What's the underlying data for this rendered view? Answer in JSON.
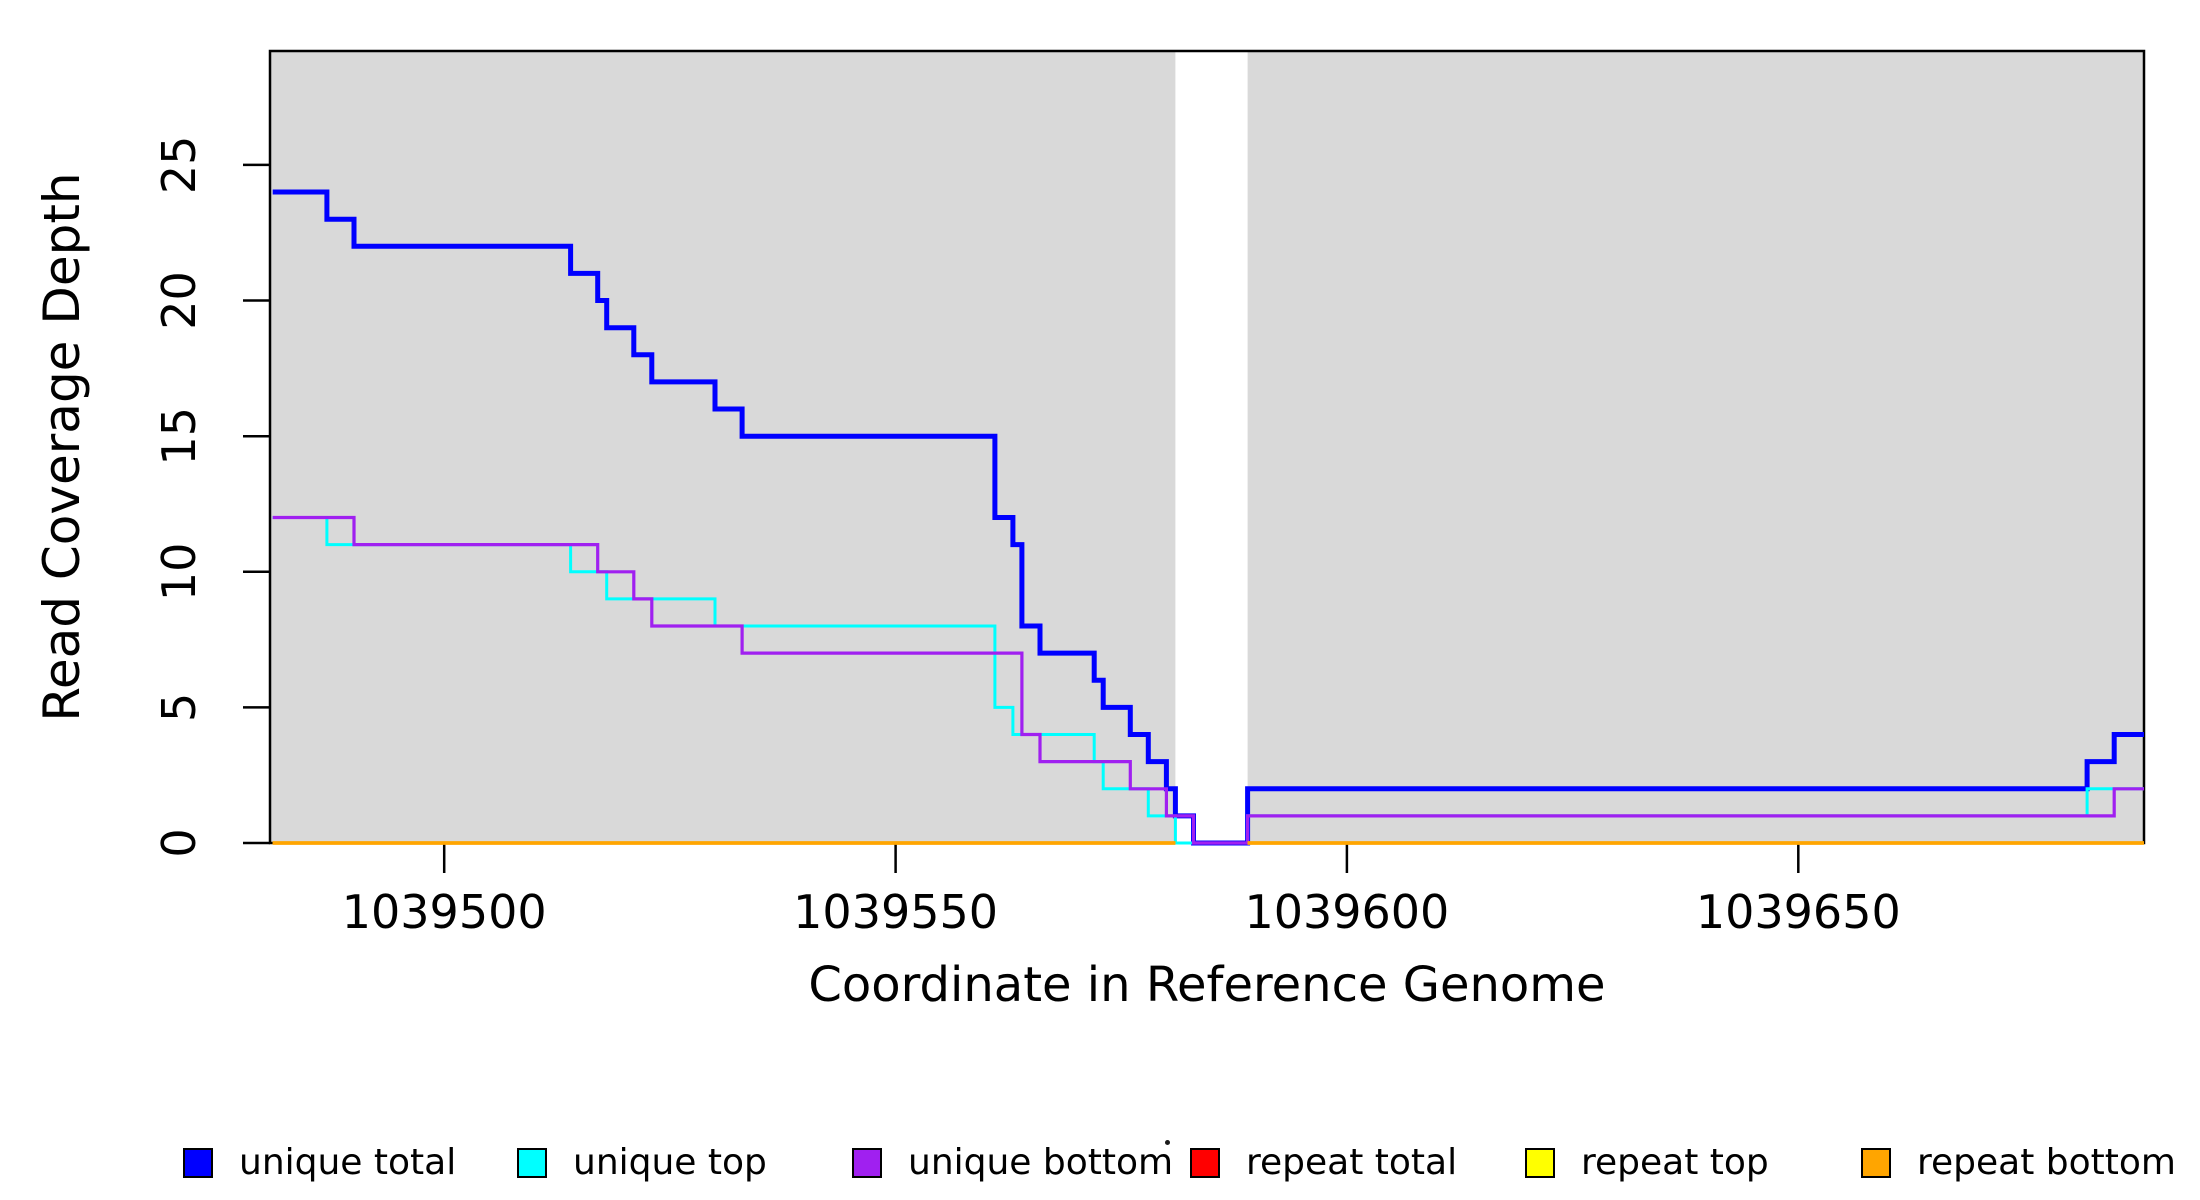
{
  "figure": {
    "y_label": "Read Coverage Depth",
    "x_label": "Coordinate in Reference Genome"
  },
  "legend": {
    "entries": [
      {
        "label": "unique total",
        "color": "#0000FF"
      },
      {
        "label": "unique top",
        "color": "#00FFFF"
      },
      {
        "label": "unique bottom",
        "color": "#A020F0"
      },
      {
        "label": "repeat total",
        "color": "#FF0000"
      },
      {
        "label": "repeat top",
        "color": "#FFFF00"
      },
      {
        "label": "repeat bottom",
        "color": "#FFA500"
      }
    ]
  },
  "colors": {
    "panel_background": "#D9D9D9",
    "gap_background": "#FFFFFF",
    "frame": "#000000",
    "unique_total": "#0000FF",
    "unique_top": "#00FFFF",
    "unique_bottom": "#A020F0",
    "repeat_total": "#FF0000",
    "repeat_top": "#FFFF00",
    "repeat_bottom": "#FFA500"
  },
  "chart_data": {
    "type": "line",
    "style": "step",
    "title": "",
    "xlabel": "Coordinate in Reference Genome",
    "ylabel": "Read Coverage Depth",
    "x_range": [
      1039480.7,
      1039688.3
    ],
    "y_range": [
      0,
      29.2
    ],
    "grid": false,
    "legend_position": "bottom",
    "x_ticks": [
      {
        "value": 1039500,
        "label": "1039500"
      },
      {
        "value": 1039550,
        "label": "1039550"
      },
      {
        "value": 1039600,
        "label": "1039600"
      },
      {
        "value": 1039650,
        "label": "1039650"
      }
    ],
    "y_ticks": [
      {
        "value": 0,
        "label": "0"
      },
      {
        "value": 5,
        "label": "5"
      },
      {
        "value": 10,
        "label": "10"
      },
      {
        "value": 15,
        "label": "15"
      },
      {
        "value": 20,
        "label": "20"
      },
      {
        "value": 25,
        "label": "25"
      }
    ],
    "background_bands": [
      {
        "x_start": 1039480.7,
        "x_end": 1039581.0,
        "color": "#D9D9D9"
      },
      {
        "x_start": 1039589.0,
        "x_end": 1039688.3,
        "color": "#D9D9D9"
      }
    ],
    "gap_region": {
      "x_start": 1039581.0,
      "x_end": 1039589.0,
      "note": "white band, no repeat-line data"
    },
    "series": [
      {
        "name": "unique total",
        "color": "#0000FF",
        "line_width": 5,
        "segments": [
          {
            "points": [
              [
                1039481,
                24
              ],
              [
                1039487,
                23
              ],
              [
                1039490,
                22
              ],
              [
                1039514,
                21
              ],
              [
                1039517,
                20
              ],
              [
                1039518,
                19
              ],
              [
                1039521,
                18
              ],
              [
                1039523,
                17
              ],
              [
                1039530,
                16
              ],
              [
                1039533,
                15
              ],
              [
                1039561,
                12
              ],
              [
                1039563,
                11
              ],
              [
                1039564,
                8
              ],
              [
                1039566,
                7
              ],
              [
                1039572,
                6
              ],
              [
                1039573,
                5
              ],
              [
                1039576,
                4
              ],
              [
                1039578,
                3
              ],
              [
                1039580,
                2
              ],
              [
                1039581,
                1
              ],
              [
                1039583,
                0
              ],
              [
                1039589,
                2
              ],
              [
                1039682,
                3
              ],
              [
                1039685,
                4
              ]
            ],
            "end_x": 1039688.3
          }
        ]
      },
      {
        "name": "unique top",
        "color": "#00FFFF",
        "line_width": 3,
        "segments": [
          {
            "points": [
              [
                1039481,
                12
              ],
              [
                1039487,
                11
              ],
              [
                1039514,
                10
              ],
              [
                1039518,
                9
              ],
              [
                1039530,
                8
              ],
              [
                1039561,
                5
              ],
              [
                1039563,
                4
              ],
              [
                1039572,
                3
              ],
              [
                1039573,
                2
              ],
              [
                1039578,
                1
              ],
              [
                1039581,
                0
              ],
              [
                1039589,
                1
              ],
              [
                1039682,
                2
              ]
            ],
            "end_x": 1039688.3
          }
        ]
      },
      {
        "name": "unique bottom",
        "color": "#A020F0",
        "line_width": 3.2,
        "segments": [
          {
            "points": [
              [
                1039481,
                12
              ],
              [
                1039490,
                11
              ],
              [
                1039517,
                10
              ],
              [
                1039521,
                9
              ],
              [
                1039523,
                8
              ],
              [
                1039533,
                7
              ],
              [
                1039564,
                4
              ],
              [
                1039566,
                3
              ],
              [
                1039576,
                2
              ],
              [
                1039580,
                1
              ],
              [
                1039583,
                0
              ],
              [
                1039589,
                1
              ],
              [
                1039685,
                2
              ]
            ],
            "end_x": 1039688.3
          }
        ]
      },
      {
        "name": "repeat total",
        "color": "#FF0000",
        "line_width": 3,
        "segments": [
          {
            "points": [
              [
                1039481,
                0
              ]
            ],
            "end_x": 1039581
          },
          {
            "points": [
              [
                1039589,
                0
              ]
            ],
            "end_x": 1039688.3
          }
        ]
      },
      {
        "name": "repeat top",
        "color": "#FFFF00",
        "line_width": 3,
        "segments": [
          {
            "points": [
              [
                1039481,
                0
              ]
            ],
            "end_x": 1039581
          },
          {
            "points": [
              [
                1039589,
                0
              ]
            ],
            "end_x": 1039688.3
          }
        ]
      },
      {
        "name": "repeat bottom",
        "color": "#FFA500",
        "line_width": 3.8,
        "segments": [
          {
            "points": [
              [
                1039481,
                0
              ]
            ],
            "end_x": 1039581
          },
          {
            "points": [
              [
                1039589,
                0
              ]
            ],
            "end_x": 1039688.3
          }
        ]
      }
    ]
  }
}
